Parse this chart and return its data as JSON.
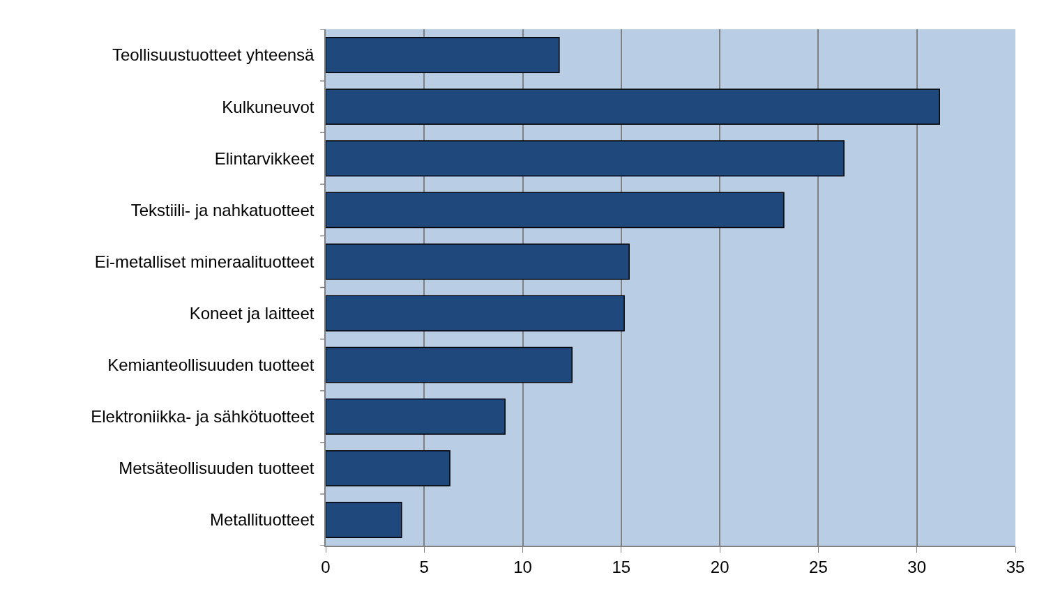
{
  "chart_data": {
    "type": "bar",
    "orientation": "horizontal",
    "categories": [
      "Teollisuustuotteet yhteensä",
      "Kulkuneuvot",
      "Elintarvikkeet",
      "Tekstiili- ja nahkatuotteet",
      "Ei-metalliset mineraalituotteet",
      "Koneet ja laitteet",
      "Kemianteollisuuden tuotteet",
      "Elektroniikka- ja sähkötuotteet",
      "Metsäteollisuuden tuotteet",
      "Metallituotteet"
    ],
    "values": [
      11.85,
      31.15,
      26.3,
      23.25,
      15.4,
      15.15,
      12.5,
      9.1,
      6.3,
      3.85
    ],
    "color": "#1f497d",
    "xlim": [
      0,
      35
    ],
    "xticks": [
      0,
      5,
      10,
      15,
      20,
      25,
      30,
      35
    ],
    "grid": "x"
  }
}
